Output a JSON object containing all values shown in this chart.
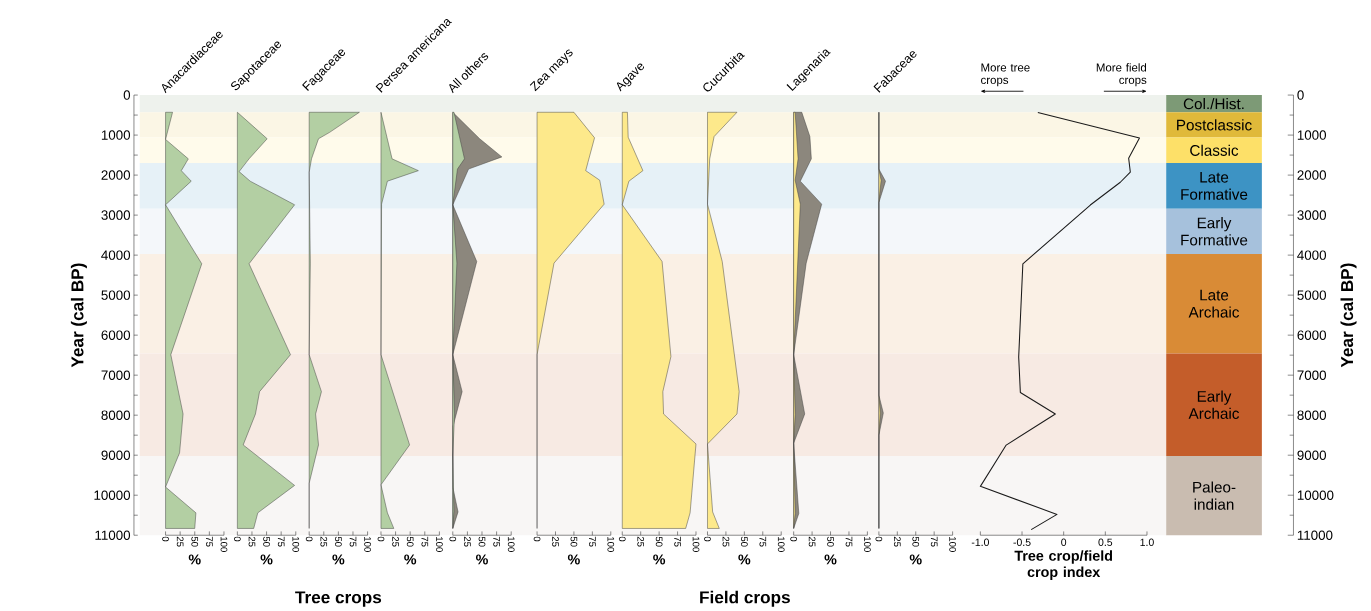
{
  "chart_data": [
    {
      "type": "area",
      "orientation": "horizontal",
      "title": "Anacardiaceae",
      "xlabel": "%",
      "ylabel": "Year (cal BP)",
      "xlim": [
        0,
        100
      ],
      "xticks": [
        0,
        25,
        50,
        75,
        100
      ],
      "ylim": [
        11000,
        0
      ],
      "yticks": [
        0,
        1000,
        2000,
        3000,
        4000,
        5000,
        6000,
        7000,
        8000,
        9000,
        10000,
        11000
      ],
      "series": [
        {
          "color": "#b3cfa3",
          "x": [
            430,
            1108,
            1594,
            1889,
            2152,
            2742,
            4216,
            6488,
            7970,
            8942,
            9795,
            10441,
            10831
          ],
          "values": [
            12,
            0,
            39,
            27,
            44,
            0,
            62,
            9,
            30,
            24,
            0,
            52,
            50
          ]
        }
      ]
    },
    {
      "type": "area",
      "orientation": "horizontal",
      "title": "Sapotaceae",
      "xlabel": "%",
      "xlim": [
        0,
        100
      ],
      "xticks": [
        0,
        25,
        50,
        75,
        100
      ],
      "ylim": [
        11000,
        0
      ],
      "tick_labels": "x",
      "series": [
        {
          "color": "#b3cfa3",
          "x": [
            430,
            1092,
            1594,
            1913,
            2152,
            2742,
            4216,
            6488,
            7412,
            7970,
            8743,
            9755,
            10441,
            10831
          ],
          "values": [
            0,
            51,
            20,
            3,
            22,
            98,
            20,
            91,
            38,
            31,
            10,
            98,
            35,
            28
          ]
        }
      ]
    },
    {
      "type": "area",
      "orientation": "horizontal",
      "title": "Fagaceae",
      "xlabel": "%",
      "xlim": [
        0,
        100
      ],
      "xticks": [
        0,
        25,
        50,
        75,
        100
      ],
      "ylim": [
        11000,
        0
      ],
      "tick_labels": "x",
      "series": [
        {
          "color": "#b3cfa3",
          "x": [
            430,
            932,
            1092,
            1594,
            1929,
            4200,
            6488,
            7412,
            7970,
            8743,
            9700,
            10831
          ],
          "values": [
            86,
            35,
            16,
            4,
            0,
            2,
            0,
            21,
            11,
            16,
            0,
            0
          ]
        }
      ]
    },
    {
      "type": "area",
      "orientation": "horizontal",
      "title": "Persea americana",
      "xlabel": "%",
      "xlim": [
        0,
        100
      ],
      "xticks": [
        0,
        25,
        50,
        75,
        100
      ],
      "ylim": [
        11000,
        0
      ],
      "tick_labels": "x",
      "series": [
        {
          "color": "#b3cfa3",
          "x": [
            430,
            1594,
            1889,
            2152,
            2726,
            6488,
            8743,
            9740,
            10441,
            10831
          ],
          "values": [
            0,
            19,
            64,
            11,
            1,
            0,
            49,
            0,
            11,
            22
          ]
        }
      ]
    },
    {
      "type": "area",
      "orientation": "horizontal",
      "title": "All others",
      "xlabel": "%",
      "xlim": [
        0,
        100
      ],
      "xticks": [
        0,
        25,
        50,
        75,
        100
      ],
      "ylim": [
        11000,
        0
      ],
      "tick_labels": "x",
      "series": [
        {
          "color": "#8c877d",
          "x": [
            430,
            1092,
            1546,
            1849,
            2742,
            4160,
            6488,
            7412,
            8300,
            9800,
            10417,
            10831
          ],
          "values": [
            0,
            46,
            84,
            27,
            0,
            41,
            0,
            16,
            0,
            0,
            9,
            0
          ]
        },
        {
          "color": "#b3cfa3",
          "x": [
            430,
            1594,
            1849,
            2742,
            4200,
            6488,
            7970,
            9000,
            10400,
            10831
          ],
          "values": [
            2,
            20,
            8,
            0,
            7,
            0,
            3,
            0,
            2,
            0
          ]
        }
      ]
    },
    {
      "type": "area",
      "orientation": "horizontal",
      "title": "Zea mays",
      "xlabel": "%",
      "xlim": [
        0,
        100
      ],
      "xticks": [
        0,
        25,
        50,
        75,
        100
      ],
      "ylim": [
        11000,
        0
      ],
      "tick_labels": "x",
      "series": [
        {
          "color": "#fde98b",
          "x": [
            430,
            1068,
            1889,
            2128,
            2726,
            4200,
            6488,
            10831
          ],
          "values": [
            50,
            78,
            66,
            85,
            91,
            23,
            0,
            0
          ]
        }
      ]
    },
    {
      "type": "area",
      "orientation": "horizontal",
      "title": "Agave",
      "xlabel": "%",
      "xlim": [
        0,
        100
      ],
      "xticks": [
        0,
        25,
        50,
        75,
        100
      ],
      "ylim": [
        11000,
        0
      ],
      "tick_labels": "x",
      "series": [
        {
          "color": "#fde98b",
          "x": [
            430,
            1052,
            1889,
            2152,
            2742,
            4160,
            6535,
            7412,
            7970,
            8719,
            10441,
            10831
          ],
          "values": [
            7,
            8,
            28,
            9,
            0,
            54,
            66,
            55,
            56,
            100,
            92,
            86
          ]
        }
      ]
    },
    {
      "type": "area",
      "orientation": "horizontal",
      "title": "Cucurbita",
      "xlabel": "%",
      "xlim": [
        0,
        100
      ],
      "xticks": [
        0,
        25,
        50,
        75,
        100
      ],
      "ylim": [
        11000,
        0
      ],
      "tick_labels": "x",
      "series": [
        {
          "color": "#fde98b",
          "x": [
            430,
            1036,
            1594,
            2726,
            4160,
            7412,
            7970,
            8719,
            10417,
            10831
          ],
          "values": [
            40,
            9,
            3,
            0,
            20,
            43,
            40,
            0,
            7,
            16
          ]
        }
      ]
    },
    {
      "type": "area",
      "orientation": "horizontal",
      "title": "Lagenaria",
      "xlabel": "%",
      "xlim": [
        0,
        100
      ],
      "xticks": [
        0,
        25,
        50,
        75,
        100
      ],
      "ylim": [
        11000,
        0
      ],
      "tick_labels": "x",
      "series": [
        {
          "color": "#8c877d",
          "x": [
            430,
            1036,
            1594,
            2152,
            2726,
            4200,
            6488,
            7970,
            8700,
            10456,
            10831
          ],
          "values": [
            11,
            22,
            24,
            9,
            38,
            17,
            0,
            15,
            0,
            7,
            0
          ]
        },
        {
          "color": "#fde98b",
          "x": [
            430,
            1594,
            2128,
            2726,
            6488,
            7986,
            8700,
            10456,
            10831
          ],
          "values": [
            2,
            6,
            2,
            9,
            0,
            2,
            0,
            2,
            0
          ]
        }
      ]
    },
    {
      "type": "area",
      "orientation": "horizontal",
      "title": "Fabaceae",
      "xlabel": "%",
      "xlim": [
        0,
        100
      ],
      "xticks": [
        0,
        25,
        50,
        75,
        100
      ],
      "ylim": [
        11000,
        0
      ],
      "tick_labels": "x",
      "series": [
        {
          "color": "#8c877d",
          "x": [
            430,
            1849,
            2152,
            2686,
            7500,
            7946,
            8500,
            10831
          ],
          "values": [
            0,
            0,
            9,
            0,
            0,
            6,
            0,
            0
          ]
        },
        {
          "color": "#fde98b",
          "x": [
            430,
            1849,
            2128,
            2686,
            7500,
            7946,
            8500,
            10831
          ],
          "values": [
            0,
            0,
            3,
            0,
            0,
            2,
            0,
            0
          ]
        }
      ]
    },
    {
      "type": "line",
      "orientation": "horizontal",
      "xlabel": "Tree crop/field crop index",
      "xlim": [
        -1,
        1
      ],
      "xticks": [
        {
          "value": -1,
          "label": "-1.0"
        },
        -0.5,
        0,
        0.5,
        {
          "value": 1,
          "label": "1.0"
        }
      ],
      "ylim": [
        11000,
        0
      ],
      "tick_labels": "x",
      "annotations": [
        "More tree crops",
        "More field crops"
      ],
      "series": [
        {
          "color": "#1a1a1a",
          "x": [
            437,
            1073,
            1576,
            1923,
            2179,
            2748,
            4217,
            6544,
            7435,
            7971,
            8747,
            9779,
            10480,
            10860
          ],
          "values": [
            -0.31,
            0.91,
            0.78,
            0.8,
            0.68,
            0.32,
            -0.49,
            -0.54,
            -0.52,
            -0.1,
            -0.69,
            -1.0,
            -0.08,
            -0.39
          ]
        }
      ]
    },
    {
      "type": "bar",
      "stacked": true,
      "categories": [
        null
      ],
      "ylabel": "Year (cal BP)",
      "ylim": [
        11000,
        0
      ],
      "yticks": [
        0,
        1000,
        2000,
        3000,
        4000,
        5000,
        6000,
        7000,
        8000,
        9000,
        10000,
        11000
      ],
      "series": [
        {
          "name": "Col./Hist.",
          "color": "#7d9a76",
          "values": [
            430
          ]
        },
        {
          "name": "Postclassic",
          "color": "#e0b93a",
          "values": [
            630
          ]
        },
        {
          "name": "Classic",
          "color": "#fde068",
          "values": [
            640
          ]
        },
        {
          "name": "Late Formative",
          "color": "#3d93c4",
          "values": [
            1140
          ]
        },
        {
          "name": "Early Formative",
          "color": "#a6c1dc",
          "values": [
            1130
          ]
        },
        {
          "name": "Late Archaic",
          "color": "#d98b36",
          "values": [
            2490
          ]
        },
        {
          "name": "Early Archaic",
          "color": "#c45d2a",
          "values": [
            2560
          ]
        },
        {
          "name": "Paleo-indian",
          "color": "#c9bcb0",
          "values": [
            1980
          ]
        }
      ],
      "annotations": [
        "Tree crops",
        "Field crops"
      ]
    }
  ]
}
